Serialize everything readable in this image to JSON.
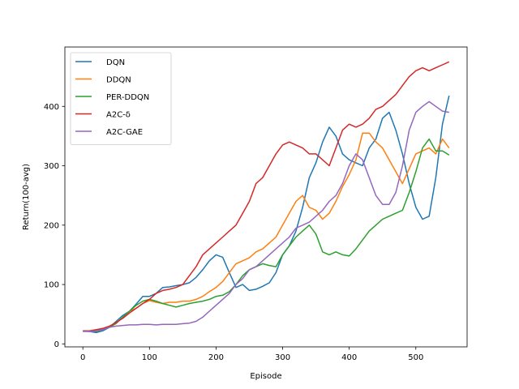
{
  "chart_data": {
    "type": "line",
    "title": "",
    "xlabel": "Episode",
    "ylabel": "Return(100-avg)",
    "xlim": [
      -27,
      577
    ],
    "ylim": [
      -5,
      500
    ],
    "xticks": [
      0,
      100,
      200,
      300,
      400,
      500
    ],
    "yticks": [
      0,
      100,
      200,
      300,
      400
    ],
    "grid": false,
    "legend_position": "top-left",
    "series": [
      {
        "name": "DQN",
        "color": "#1f77b4",
        "x": [
          0,
          10,
          20,
          30,
          40,
          50,
          60,
          70,
          80,
          90,
          100,
          110,
          120,
          130,
          140,
          150,
          160,
          170,
          180,
          190,
          200,
          210,
          220,
          230,
          240,
          250,
          260,
          270,
          280,
          290,
          300,
          310,
          320,
          330,
          340,
          350,
          360,
          370,
          380,
          390,
          400,
          410,
          420,
          430,
          440,
          450,
          460,
          470,
          480,
          490,
          500,
          510,
          520,
          530,
          540,
          550
        ],
        "y": [
          22,
          21,
          19,
          22,
          28,
          38,
          48,
          55,
          67,
          80,
          80,
          85,
          95,
          96,
          98,
          100,
          103,
          112,
          125,
          140,
          150,
          146,
          120,
          95,
          100,
          90,
          92,
          97,
          103,
          120,
          150,
          165,
          190,
          230,
          280,
          305,
          340,
          365,
          350,
          320,
          310,
          305,
          300,
          330,
          345,
          380,
          390,
          360,
          320,
          270,
          230,
          210,
          215,
          280,
          370,
          418
        ]
      },
      {
        "name": "DDQN",
        "color": "#ff7f0e",
        "x": [
          0,
          10,
          20,
          30,
          40,
          50,
          60,
          70,
          80,
          90,
          100,
          110,
          120,
          130,
          140,
          150,
          160,
          170,
          180,
          190,
          200,
          210,
          220,
          230,
          240,
          250,
          260,
          270,
          280,
          290,
          300,
          310,
          320,
          330,
          340,
          350,
          360,
          370,
          380,
          390,
          400,
          410,
          420,
          430,
          440,
          450,
          460,
          470,
          480,
          490,
          500,
          510,
          520,
          530,
          540,
          550
        ],
        "y": [
          22,
          22,
          22,
          25,
          28,
          34,
          45,
          55,
          60,
          68,
          73,
          70,
          68,
          70,
          70,
          72,
          72,
          75,
          80,
          88,
          95,
          105,
          120,
          135,
          140,
          145,
          155,
          160,
          170,
          180,
          200,
          220,
          240,
          250,
          230,
          225,
          210,
          220,
          240,
          265,
          285,
          310,
          355,
          355,
          340,
          330,
          310,
          290,
          270,
          295,
          320,
          325,
          330,
          320,
          345,
          330
        ]
      },
      {
        "name": "PER-DDQN",
        "color": "#2ca02c",
        "x": [
          0,
          10,
          20,
          30,
          40,
          50,
          60,
          70,
          80,
          90,
          100,
          110,
          120,
          130,
          140,
          150,
          160,
          170,
          180,
          190,
          200,
          210,
          220,
          230,
          240,
          250,
          260,
          270,
          280,
          290,
          300,
          310,
          320,
          330,
          340,
          350,
          360,
          370,
          380,
          390,
          400,
          410,
          420,
          430,
          440,
          450,
          460,
          470,
          480,
          490,
          500,
          510,
          520,
          530,
          540,
          550
        ],
        "y": [
          22,
          22,
          21,
          24,
          28,
          35,
          45,
          55,
          65,
          72,
          75,
          72,
          68,
          65,
          62,
          65,
          68,
          70,
          72,
          75,
          80,
          82,
          88,
          100,
          115,
          125,
          130,
          135,
          132,
          130,
          150,
          165,
          180,
          190,
          200,
          185,
          155,
          150,
          155,
          150,
          148,
          160,
          175,
          190,
          200,
          210,
          215,
          220,
          225,
          255,
          290,
          330,
          345,
          325,
          325,
          318
        ]
      },
      {
        "name": "A2C-δ",
        "color": "#d62728",
        "x": [
          0,
          10,
          20,
          30,
          40,
          50,
          60,
          70,
          80,
          90,
          100,
          110,
          120,
          130,
          140,
          150,
          160,
          170,
          180,
          190,
          200,
          210,
          220,
          230,
          240,
          250,
          260,
          270,
          280,
          290,
          300,
          310,
          320,
          330,
          340,
          350,
          360,
          370,
          380,
          390,
          400,
          410,
          420,
          430,
          440,
          450,
          460,
          470,
          480,
          490,
          500,
          510,
          520,
          530,
          540,
          550
        ],
        "y": [
          22,
          22,
          24,
          26,
          30,
          36,
          43,
          52,
          60,
          68,
          75,
          85,
          90,
          92,
          95,
          100,
          115,
          130,
          150,
          160,
          170,
          180,
          190,
          200,
          220,
          240,
          270,
          280,
          300,
          320,
          335,
          340,
          335,
          330,
          320,
          320,
          310,
          300,
          330,
          360,
          370,
          365,
          370,
          380,
          395,
          400,
          410,
          420,
          435,
          450,
          460,
          465,
          460,
          465,
          470,
          475
        ]
      },
      {
        "name": "A2C-GAE",
        "color": "#9467bd",
        "x": [
          0,
          10,
          20,
          30,
          40,
          50,
          60,
          70,
          80,
          90,
          100,
          110,
          120,
          130,
          140,
          150,
          160,
          170,
          180,
          190,
          200,
          210,
          220,
          230,
          240,
          250,
          260,
          270,
          280,
          290,
          300,
          310,
          320,
          330,
          340,
          350,
          360,
          370,
          380,
          390,
          400,
          410,
          420,
          430,
          440,
          450,
          460,
          470,
          480,
          490,
          500,
          510,
          520,
          530,
          540,
          550
        ],
        "y": [
          21,
          21,
          22,
          24,
          28,
          30,
          31,
          32,
          32,
          33,
          33,
          32,
          33,
          33,
          33,
          34,
          35,
          38,
          45,
          55,
          65,
          75,
          85,
          100,
          110,
          125,
          130,
          140,
          150,
          160,
          170,
          180,
          195,
          200,
          205,
          215,
          225,
          240,
          250,
          270,
          300,
          320,
          310,
          280,
          250,
          235,
          235,
          255,
          300,
          360,
          390,
          400,
          408,
          400,
          392,
          390
        ]
      }
    ]
  }
}
